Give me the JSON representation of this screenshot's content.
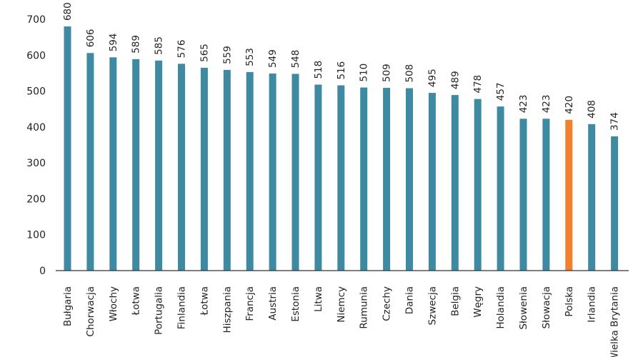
{
  "chart_data": {
    "type": "bar",
    "categories": [
      "Bułgaria",
      "Chorwacja",
      "Włochy",
      "Łotwa",
      "Portugalia",
      "Finlandia",
      "Łotwa",
      "Hiszpania",
      "Francja",
      "Austria",
      "Estonia",
      "Litwa",
      "Niemcy",
      "Rumunia",
      "Czechy",
      "Dania",
      "Szwecja",
      "Belgia",
      "Węgry",
      "Holandia",
      "Słowenia",
      "Słowacja",
      "Polska",
      "Irlandia",
      "Wielka Brytania"
    ],
    "values": [
      680,
      606,
      594,
      589,
      585,
      576,
      565,
      559,
      553,
      549,
      548,
      518,
      516,
      510,
      509,
      508,
      495,
      489,
      478,
      457,
      423,
      423,
      420,
      408,
      374
    ],
    "data_labels": [
      "680",
      "606",
      "594",
      "589",
      "585",
      "576",
      "565",
      "559",
      "553",
      "549",
      "548",
      "518",
      "516",
      "510",
      "509",
      "508",
      "495",
      "489",
      "478",
      "457",
      "423",
      "423",
      "420",
      "408",
      "374"
    ],
    "yticks": [
      "0",
      "100",
      "200",
      "300",
      "400",
      "500",
      "600",
      "700"
    ],
    "ylim": [
      0,
      700
    ],
    "highlight_category": "Polska",
    "colors": {
      "bar": "#3d8aa2",
      "highlight": "#f0812f",
      "axis": "#333333"
    },
    "grid": false
  }
}
